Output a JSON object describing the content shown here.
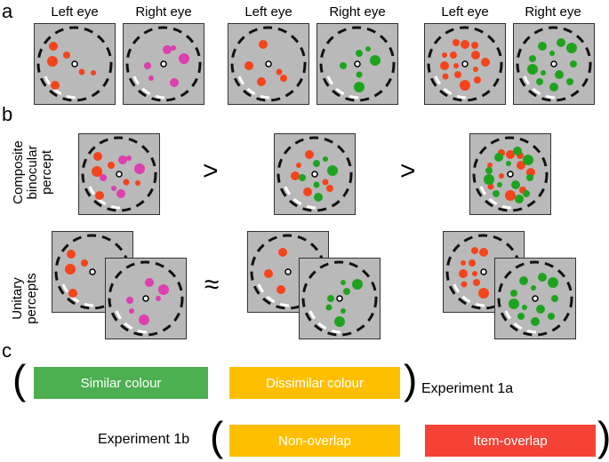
{
  "panels": {
    "a": "a",
    "b": "b",
    "c": "c"
  },
  "eye_labels": {
    "left": "Left eye",
    "right": "Right eye"
  },
  "row_labels": {
    "composite": [
      "Composite",
      "binocular",
      "percept"
    ],
    "unitary": [
      "Unitary",
      "percepts"
    ]
  },
  "operators": {
    "gt1": ">",
    "gt2": ">",
    "approx": "≈"
  },
  "conditions": {
    "similar": "Similar colour",
    "dissimilar": "Dissimilar colour",
    "non_overlap": "Non-overlap",
    "item_overlap": "Item-overlap"
  },
  "experiments": {
    "exp1a": "Experiment 1a",
    "exp1b": "Experiment 1b"
  },
  "colors": {
    "panel_bg": "#b9b9b9",
    "red_dot": "#f4441c",
    "magenta_dot": "#dd3fae",
    "green_dot": "#1fa31f",
    "bar_green": "#4caf50",
    "bar_orange": "#ffbf00",
    "bar_red": "#f44336"
  }
}
